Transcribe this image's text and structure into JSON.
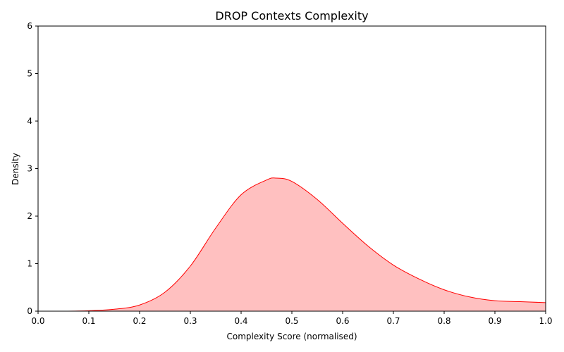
{
  "chart_data": {
    "type": "area",
    "title": "DROP Contexts Complexity",
    "xlabel": "Complexity Score (normalised)",
    "ylabel": "Density",
    "xlim": [
      0.0,
      1.0
    ],
    "ylim": [
      0,
      6
    ],
    "x_ticks": [
      "0.0",
      "0.1",
      "0.2",
      "0.3",
      "0.4",
      "0.5",
      "0.6",
      "0.7",
      "0.8",
      "0.9",
      "1.0"
    ],
    "y_ticks": [
      "0",
      "1",
      "2",
      "3",
      "4",
      "5",
      "6"
    ],
    "grid": false,
    "legend": "none",
    "fill_color": "#ffc0c0",
    "line_color": "#ff0000",
    "series": [
      {
        "x": [
          0.0,
          0.05,
          0.1,
          0.15,
          0.2,
          0.25,
          0.3,
          0.35,
          0.4,
          0.45,
          0.47,
          0.5,
          0.55,
          0.6,
          0.65,
          0.7,
          0.75,
          0.8,
          0.85,
          0.9,
          0.95,
          1.0
        ],
        "y": [
          0.0,
          0.0,
          0.01,
          0.04,
          0.13,
          0.4,
          0.95,
          1.75,
          2.45,
          2.76,
          2.8,
          2.73,
          2.35,
          1.85,
          1.37,
          0.97,
          0.68,
          0.45,
          0.3,
          0.22,
          0.2,
          0.18
        ]
      }
    ]
  }
}
